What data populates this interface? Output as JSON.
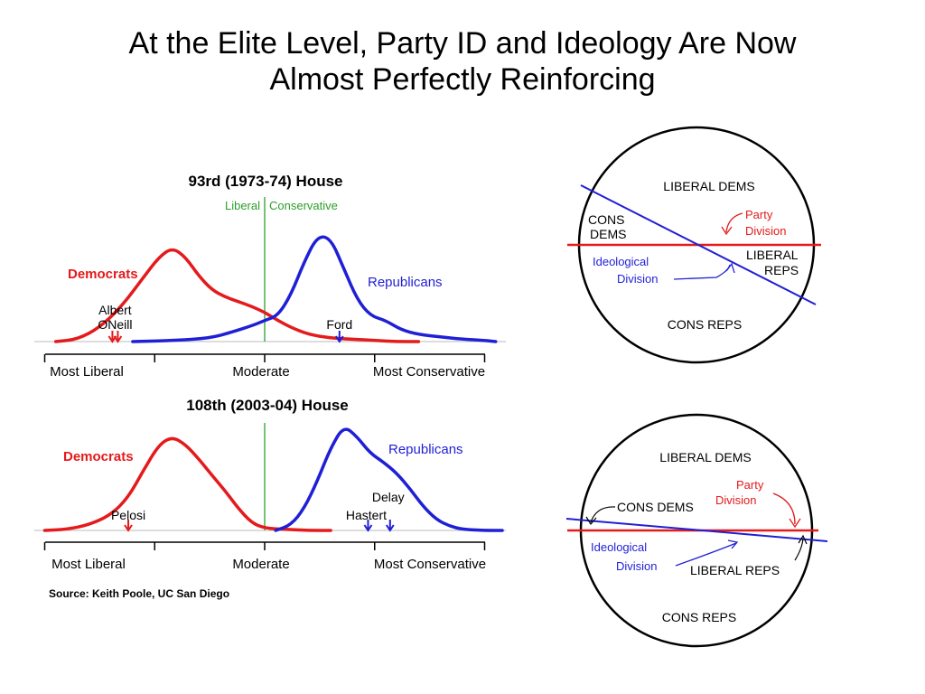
{
  "title": [
    "At the Elite Level, Party ID and Ideology Are Now",
    "Almost Perfectly Reinforcing"
  ],
  "colors": {
    "democrats": "#e41a1c",
    "republicans": "#1f1fd6",
    "divider": "#2ca02c"
  },
  "chart_data": [
    {
      "type": "line",
      "title": "93rd (1973-74) House",
      "divider_labels": [
        "Liberal",
        "Conservative"
      ],
      "xlabels": [
        "Most Liberal",
        "Moderate",
        "Most Conservative"
      ],
      "xlim": [
        -1,
        1
      ],
      "series": [
        {
          "name": "Democrats",
          "color": "#e41a1c",
          "x": [
            -0.95,
            -0.85,
            -0.75,
            -0.65,
            -0.55,
            -0.48,
            -0.42,
            -0.36,
            -0.3,
            -0.24,
            -0.18,
            -0.12,
            -0.06,
            0.0,
            0.06,
            0.12,
            0.2,
            0.3,
            0.4,
            0.5,
            0.6,
            0.7
          ],
          "y": [
            0.0,
            0.02,
            0.12,
            0.3,
            0.55,
            0.72,
            0.8,
            0.72,
            0.56,
            0.44,
            0.38,
            0.34,
            0.3,
            0.25,
            0.18,
            0.12,
            0.06,
            0.03,
            0.02,
            0.01,
            0.0,
            0.0
          ]
        },
        {
          "name": "Republicans",
          "color": "#1f1fd6",
          "x": [
            -0.6,
            -0.4,
            -0.25,
            -0.15,
            -0.05,
            0.0,
            0.06,
            0.12,
            0.18,
            0.24,
            0.3,
            0.36,
            0.42,
            0.48,
            0.55,
            0.62,
            0.7,
            0.8,
            0.9,
            1.0,
            1.05
          ],
          "y": [
            0.0,
            0.01,
            0.03,
            0.08,
            0.14,
            0.18,
            0.22,
            0.4,
            0.68,
            0.9,
            0.88,
            0.62,
            0.36,
            0.22,
            0.18,
            0.1,
            0.06,
            0.04,
            0.02,
            0.01,
            0.0
          ]
        }
      ],
      "markers": [
        {
          "label": "Albert ONeill",
          "lines": [
            "Albert",
            "ONeill"
          ],
          "x": -0.68,
          "color": "#e41a1c",
          "double": true
        },
        {
          "label": "Ford",
          "lines": [
            "Ford"
          ],
          "x": 0.34,
          "color": "#1f1fd6",
          "double": false
        }
      ]
    },
    {
      "type": "line",
      "title": "108th (2003-04) House",
      "xlabels": [
        "Most Liberal",
        "Moderate",
        "Most Conservative"
      ],
      "xlim": [
        -1,
        1
      ],
      "series": [
        {
          "name": "Democrats",
          "color": "#e41a1c",
          "x": [
            -1.0,
            -0.9,
            -0.8,
            -0.7,
            -0.62,
            -0.55,
            -0.48,
            -0.42,
            -0.36,
            -0.3,
            -0.24,
            -0.18,
            -0.12,
            -0.06,
            0.0,
            0.1,
            0.2,
            0.3
          ],
          "y": [
            0.0,
            0.01,
            0.05,
            0.14,
            0.3,
            0.55,
            0.78,
            0.85,
            0.78,
            0.65,
            0.5,
            0.36,
            0.2,
            0.07,
            0.02,
            0.01,
            0.0,
            0.0
          ]
        },
        {
          "name": "Republicans",
          "color": "#1f1fd6",
          "x": [
            0.05,
            0.12,
            0.18,
            0.24,
            0.3,
            0.36,
            0.42,
            0.48,
            0.54,
            0.6,
            0.66,
            0.72,
            0.78,
            0.84,
            0.9,
            1.0,
            1.08
          ],
          "y": [
            0.0,
            0.05,
            0.2,
            0.45,
            0.75,
            0.95,
            0.85,
            0.7,
            0.62,
            0.52,
            0.38,
            0.22,
            0.1,
            0.04,
            0.01,
            0.0,
            0.0
          ]
        }
      ],
      "markers": [
        {
          "label": "Pelosi",
          "lines": [
            "Pelosi"
          ],
          "x": -0.62,
          "color": "#e41a1c",
          "double": false
        },
        {
          "label": "Hastert",
          "lines": [
            "Hastert"
          ],
          "x": 0.47,
          "color": "#1f1fd6",
          "double": false
        },
        {
          "label": "Delay",
          "lines": [
            "Delay"
          ],
          "x": 0.57,
          "color": "#1f1fd6",
          "double": false
        }
      ]
    }
  ],
  "source": "Source: Keith Poole, UC San Diego",
  "circle_top": {
    "liberal_dems": "LIBERAL DEMS",
    "cons_dems": [
      "CONS",
      "DEMS"
    ],
    "party_division": [
      "Party",
      "Division"
    ],
    "liberal_reps": [
      "LIBERAL",
      "REPS"
    ],
    "ideological_division": [
      "Ideological",
      "Division"
    ],
    "cons_reps": "CONS REPS"
  },
  "circle_bottom": {
    "liberal_dems": "LIBERAL DEMS",
    "cons_dems": "CONS DEMS",
    "party_division": [
      "Party",
      "Division"
    ],
    "ideological_division": [
      "Ideological",
      "Division"
    ],
    "liberal_reps": "LIBERAL REPS",
    "cons_reps": "CONS REPS"
  }
}
